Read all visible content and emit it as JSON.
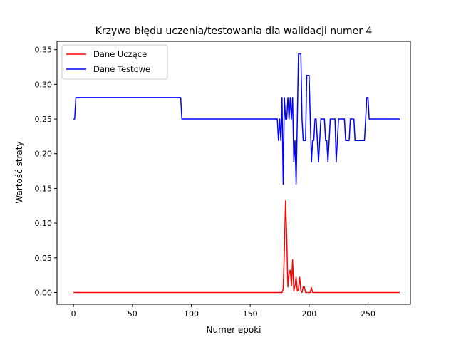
{
  "chart_data": {
    "type": "line",
    "title": "Krzywa błędu uczenia/testowania dla walidacji numer 4",
    "xlabel": "Numer epoki",
    "ylabel": "Wartość straty",
    "xlim": [
      -14,
      286
    ],
    "ylim": [
      -0.017,
      0.362
    ],
    "x_ticks": [
      0,
      50,
      100,
      150,
      200,
      250
    ],
    "y_ticks": [
      0.0,
      0.05,
      0.1,
      0.15,
      0.2,
      0.25,
      0.3,
      0.35
    ],
    "y_tick_labels": [
      "0.00",
      "0.05",
      "0.10",
      "0.15",
      "0.20",
      "0.25",
      "0.30",
      "0.35"
    ],
    "legend_position": "top-left",
    "grid": false,
    "series": [
      {
        "name": "Dane Uczące",
        "color": "#ff0000",
        "points": [
          [
            0,
            0.0
          ],
          [
            177,
            0.0
          ],
          [
            178,
            0.005
          ],
          [
            179,
            0.06
          ],
          [
            180,
            0.132
          ],
          [
            181,
            0.08
          ],
          [
            182,
            0.008
          ],
          [
            183,
            0.028
          ],
          [
            184,
            0.032
          ],
          [
            185,
            0.01
          ],
          [
            186,
            0.047
          ],
          [
            187,
            0.002
          ],
          [
            188,
            0.01
          ],
          [
            189,
            0.022
          ],
          [
            190,
            0.002
          ],
          [
            191,
            0.005
          ],
          [
            192,
            0.022
          ],
          [
            193,
            0.003
          ],
          [
            194,
            0.0
          ],
          [
            195,
            0.008
          ],
          [
            196,
            0.008
          ],
          [
            197,
            0.0
          ],
          [
            201,
            0.0
          ],
          [
            202,
            0.007
          ],
          [
            203,
            0.0
          ],
          [
            277,
            0.0
          ]
        ]
      },
      {
        "name": "Dane Testowe",
        "color": "#0000ff",
        "points": [
          [
            0,
            0.25
          ],
          [
            1,
            0.25
          ],
          [
            2,
            0.281
          ],
          [
            91,
            0.281
          ],
          [
            92,
            0.25
          ],
          [
            173,
            0.25
          ],
          [
            174,
            0.219
          ],
          [
            175,
            0.25
          ],
          [
            176,
            0.219
          ],
          [
            177,
            0.281
          ],
          [
            178,
            0.156
          ],
          [
            179,
            0.281
          ],
          [
            180,
            0.25
          ],
          [
            181,
            0.25
          ],
          [
            182,
            0.281
          ],
          [
            183,
            0.25
          ],
          [
            184,
            0.281
          ],
          [
            185,
            0.25
          ],
          [
            186,
            0.281
          ],
          [
            187,
            0.188
          ],
          [
            188,
            0.219
          ],
          [
            189,
            0.156
          ],
          [
            190,
            0.25
          ],
          [
            191,
            0.344
          ],
          [
            193,
            0.344
          ],
          [
            194,
            0.25
          ],
          [
            195,
            0.219
          ],
          [
            197,
            0.219
          ],
          [
            198,
            0.313
          ],
          [
            200,
            0.313
          ],
          [
            201,
            0.25
          ],
          [
            202,
            0.188
          ],
          [
            203,
            0.219
          ],
          [
            204,
            0.219
          ],
          [
            205,
            0.25
          ],
          [
            206,
            0.25
          ],
          [
            207,
            0.219
          ],
          [
            208,
            0.188
          ],
          [
            209,
            0.219
          ],
          [
            210,
            0.25
          ],
          [
            213,
            0.25
          ],
          [
            214,
            0.219
          ],
          [
            215,
            0.219
          ],
          [
            216,
            0.188
          ],
          [
            217,
            0.219
          ],
          [
            218,
            0.25
          ],
          [
            222,
            0.25
          ],
          [
            223,
            0.188
          ],
          [
            224,
            0.219
          ],
          [
            225,
            0.25
          ],
          [
            230,
            0.25
          ],
          [
            231,
            0.219
          ],
          [
            234,
            0.219
          ],
          [
            235,
            0.25
          ],
          [
            238,
            0.25
          ],
          [
            239,
            0.219
          ],
          [
            247,
            0.219
          ],
          [
            248,
            0.25
          ],
          [
            249,
            0.281
          ],
          [
            250,
            0.281
          ],
          [
            251,
            0.25
          ],
          [
            277,
            0.25
          ]
        ]
      }
    ]
  }
}
